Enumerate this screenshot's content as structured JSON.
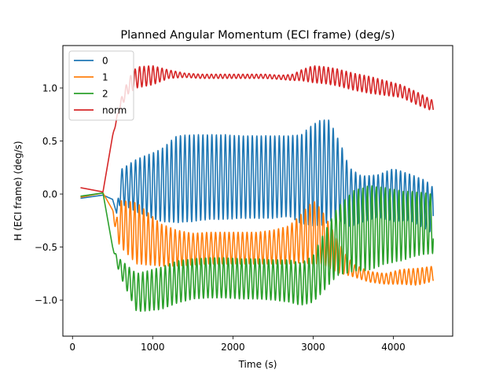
{
  "chart_data": {
    "type": "line",
    "title": "Planned Angular Momentum (ECI frame) (deg/s)",
    "xlabel": "Time (s)",
    "ylabel": "H (ECI frame) (deg/s)",
    "xlim": [
      -120,
      4740
    ],
    "ylim": [
      -1.34,
      1.4
    ],
    "xticks": [
      0,
      1000,
      2000,
      3000,
      4000
    ],
    "xtick_labels": [
      "0",
      "1000",
      "2000",
      "3000",
      "4000"
    ],
    "yticks": [
      -1.0,
      -0.5,
      0.0,
      0.5,
      1.0
    ],
    "ytick_labels": [
      "−1.0",
      "−0.5",
      "0.0",
      "0.5",
      "1.0"
    ],
    "grid": false,
    "legend_position": "top-left",
    "series": [
      {
        "name": "0",
        "color": "#1f77b4",
        "x": [
          100,
          380,
          500,
          550,
          600,
          800,
          1100,
          1300,
          1500,
          1700,
          1900,
          2100,
          2300,
          2500,
          2700,
          2850,
          3000,
          3100,
          3200,
          3350,
          3450,
          3600,
          3800,
          4000,
          4200,
          4400,
          4500
        ],
        "y": [
          -0.04,
          -0.01,
          -0.05,
          -0.18,
          0.07,
          0.08,
          0.08,
          0.14,
          0.15,
          0.16,
          0.16,
          0.16,
          0.16,
          0.16,
          0.17,
          0.14,
          0.18,
          0.2,
          0.22,
          0.1,
          -0.03,
          -0.05,
          -0.02,
          -0.01,
          -0.03,
          -0.1,
          -0.16
        ],
        "amp": [
          0,
          0,
          0,
          0,
          0.16,
          0.25,
          0.34,
          0.41,
          0.41,
          0.4,
          0.4,
          0.39,
          0.39,
          0.39,
          0.38,
          0.42,
          0.48,
          0.5,
          0.48,
          0.36,
          0.28,
          0.22,
          0.2,
          0.25,
          0.22,
          0.23,
          0.22
        ]
      },
      {
        "name": "1",
        "color": "#ff7f0e",
        "x": [
          100,
          380,
          500,
          550,
          600,
          800,
          1100,
          1300,
          1500,
          1700,
          1900,
          2100,
          2300,
          2500,
          2700,
          2850,
          3000,
          3100,
          3300,
          3400,
          3500,
          3700,
          3900,
          4100,
          4300,
          4500
        ],
        "y": [
          -0.03,
          0.01,
          -0.15,
          -0.33,
          -0.28,
          -0.37,
          -0.48,
          -0.51,
          -0.52,
          -0.51,
          -0.51,
          -0.51,
          -0.51,
          -0.5,
          -0.48,
          -0.42,
          -0.36,
          -0.4,
          -0.58,
          -0.66,
          -0.72,
          -0.78,
          -0.8,
          -0.78,
          -0.78,
          -0.75
        ],
        "amp": [
          0,
          0,
          0,
          0.1,
          0.22,
          0.29,
          0.2,
          0.17,
          0.15,
          0.15,
          0.15,
          0.15,
          0.15,
          0.16,
          0.18,
          0.23,
          0.3,
          0.26,
          0.16,
          0.1,
          0.06,
          0.05,
          0.05,
          0.07,
          0.08,
          0.07
        ]
      },
      {
        "name": "2",
        "color": "#2ca02c",
        "x": [
          100,
          380,
          500,
          550,
          600,
          800,
          1100,
          1300,
          1500,
          1700,
          1900,
          2100,
          2300,
          2500,
          2700,
          2850,
          3000,
          3100,
          3300,
          3500,
          3700,
          3900,
          4100,
          4300,
          4500
        ],
        "y": [
          -0.02,
          0.01,
          -0.5,
          -0.62,
          -0.7,
          -0.93,
          -0.89,
          -0.83,
          -0.8,
          -0.79,
          -0.79,
          -0.8,
          -0.8,
          -0.81,
          -0.82,
          -0.85,
          -0.8,
          -0.68,
          -0.45,
          -0.35,
          -0.32,
          -0.3,
          -0.3,
          -0.28,
          -0.28
        ],
        "amp": [
          0,
          0,
          0,
          0.04,
          0.08,
          0.18,
          0.2,
          0.2,
          0.19,
          0.19,
          0.19,
          0.19,
          0.19,
          0.19,
          0.2,
          0.2,
          0.22,
          0.26,
          0.32,
          0.38,
          0.4,
          0.36,
          0.33,
          0.3,
          0.28
        ]
      },
      {
        "name": "norm",
        "color": "#d62728",
        "x": [
          100,
          380,
          500,
          600,
          700,
          800,
          1000,
          1200,
          1400,
          1600,
          1800,
          2000,
          2200,
          2400,
          2600,
          2750,
          2850,
          3000,
          3150,
          3300,
          3500,
          3700,
          3900,
          4100,
          4300,
          4500
        ],
        "y": [
          0.06,
          0.02,
          0.55,
          0.85,
          1.02,
          1.1,
          1.12,
          1.13,
          1.12,
          1.11,
          1.11,
          1.11,
          1.11,
          1.11,
          1.1,
          1.1,
          1.12,
          1.13,
          1.12,
          1.1,
          1.06,
          1.03,
          1.0,
          0.97,
          0.9,
          0.83
        ],
        "amp": [
          0,
          0,
          0,
          0.04,
          0.07,
          0.1,
          0.09,
          0.04,
          0.02,
          0.02,
          0.02,
          0.02,
          0.02,
          0.02,
          0.02,
          0.03,
          0.05,
          0.08,
          0.08,
          0.08,
          0.08,
          0.08,
          0.07,
          0.06,
          0.06,
          0.05
        ]
      }
    ],
    "oscillation_period": 56,
    "series_phase": [
      0,
      1.1,
      2.4,
      0.6
    ]
  }
}
